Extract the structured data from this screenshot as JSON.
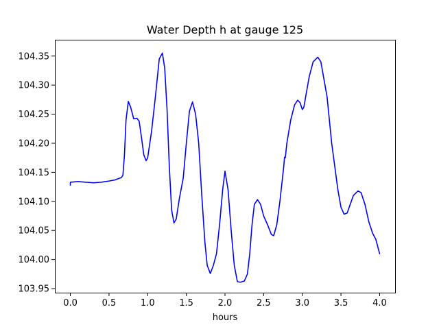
{
  "chart_data": {
    "type": "line",
    "title": "Water Depth h at gauge 125",
    "xlabel": "hours",
    "ylabel": "",
    "xlim": [
      -0.2,
      4.2
    ],
    "ylim": [
      103.943,
      104.378
    ],
    "xticks": [
      0.0,
      0.5,
      1.0,
      1.5,
      2.0,
      2.5,
      3.0,
      3.5,
      4.0
    ],
    "xtick_labels": [
      "0.0",
      "0.5",
      "1.0",
      "1.5",
      "2.0",
      "2.5",
      "3.0",
      "3.5",
      "4.0"
    ],
    "yticks": [
      103.95,
      104.0,
      104.05,
      104.1,
      104.15,
      104.2,
      104.25,
      104.3,
      104.35
    ],
    "ytick_labels": [
      "103.95",
      "104.00",
      "104.05",
      "104.10",
      "104.15",
      "104.20",
      "104.25",
      "104.30",
      "104.35"
    ],
    "grid": false,
    "series": [
      {
        "color": "#0000ff",
        "points": [
          [
            0.0,
            104.128
          ],
          [
            0.0,
            104.133
          ],
          [
            0.1,
            104.134
          ],
          [
            0.2,
            104.133
          ],
          [
            0.3,
            104.132
          ],
          [
            0.4,
            104.133
          ],
          [
            0.5,
            104.135
          ],
          [
            0.58,
            104.137
          ],
          [
            0.66,
            104.141
          ],
          [
            0.68,
            104.145
          ],
          [
            0.7,
            104.18
          ],
          [
            0.72,
            104.24
          ],
          [
            0.75,
            104.272
          ],
          [
            0.78,
            104.262
          ],
          [
            0.82,
            104.242
          ],
          [
            0.86,
            104.243
          ],
          [
            0.89,
            104.238
          ],
          [
            0.92,
            104.21
          ],
          [
            0.95,
            104.18
          ],
          [
            0.98,
            104.17
          ],
          [
            1.0,
            104.175
          ],
          [
            1.05,
            104.22
          ],
          [
            1.1,
            104.28
          ],
          [
            1.15,
            104.345
          ],
          [
            1.19,
            104.355
          ],
          [
            1.22,
            104.33
          ],
          [
            1.25,
            104.26
          ],
          [
            1.28,
            104.16
          ],
          [
            1.31,
            104.085
          ],
          [
            1.34,
            104.063
          ],
          [
            1.37,
            104.07
          ],
          [
            1.41,
            104.105
          ],
          [
            1.46,
            104.14
          ],
          [
            1.5,
            104.2
          ],
          [
            1.54,
            104.255
          ],
          [
            1.58,
            104.271
          ],
          [
            1.62,
            104.25
          ],
          [
            1.66,
            104.2
          ],
          [
            1.7,
            104.11
          ],
          [
            1.74,
            104.03
          ],
          [
            1.77,
            103.99
          ],
          [
            1.81,
            103.976
          ],
          [
            1.85,
            103.99
          ],
          [
            1.89,
            104.01
          ],
          [
            1.93,
            104.06
          ],
          [
            1.97,
            104.12
          ],
          [
            2.0,
            104.152
          ],
          [
            2.04,
            104.12
          ],
          [
            2.08,
            104.05
          ],
          [
            2.12,
            103.99
          ],
          [
            2.16,
            103.962
          ],
          [
            2.2,
            103.961
          ],
          [
            2.25,
            103.963
          ],
          [
            2.29,
            103.975
          ],
          [
            2.32,
            104.01
          ],
          [
            2.35,
            104.06
          ],
          [
            2.38,
            104.095
          ],
          [
            2.42,
            104.103
          ],
          [
            2.46,
            104.095
          ],
          [
            2.5,
            104.075
          ],
          [
            2.55,
            104.06
          ],
          [
            2.6,
            104.043
          ],
          [
            2.63,
            104.041
          ],
          [
            2.67,
            104.06
          ],
          [
            2.71,
            104.1
          ],
          [
            2.76,
            104.16
          ],
          [
            2.77,
            104.176
          ],
          [
            2.78,
            104.175
          ],
          [
            2.8,
            104.2
          ],
          [
            2.85,
            104.24
          ],
          [
            2.9,
            104.266
          ],
          [
            2.94,
            104.274
          ],
          [
            2.97,
            104.27
          ],
          [
            3.0,
            104.258
          ],
          [
            3.02,
            104.262
          ],
          [
            3.05,
            104.285
          ],
          [
            3.09,
            104.315
          ],
          [
            3.14,
            104.34
          ],
          [
            3.2,
            104.348
          ],
          [
            3.24,
            104.34
          ],
          [
            3.28,
            104.31
          ],
          [
            3.32,
            104.28
          ],
          [
            3.38,
            104.2
          ],
          [
            3.42,
            104.16
          ],
          [
            3.46,
            104.12
          ],
          [
            3.5,
            104.09
          ],
          [
            3.54,
            104.078
          ],
          [
            3.58,
            104.08
          ],
          [
            3.62,
            104.095
          ],
          [
            3.66,
            104.11
          ],
          [
            3.72,
            104.118
          ],
          [
            3.76,
            104.115
          ],
          [
            3.81,
            104.095
          ],
          [
            3.86,
            104.065
          ],
          [
            3.91,
            104.045
          ],
          [
            3.95,
            104.035
          ],
          [
            4.0,
            104.01
          ]
        ]
      }
    ]
  }
}
